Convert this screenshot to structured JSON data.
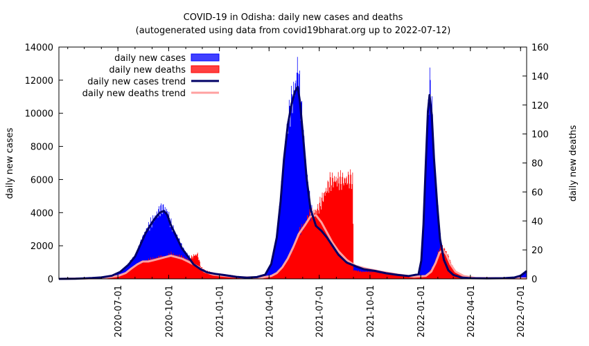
{
  "chart_data": {
    "type": "area",
    "title": "COVID-19 in Odisha: daily new cases and deaths",
    "subtitle": "(autogenerated using data from covid19bharat.org up to 2022-07-12)",
    "ylabel": "daily new cases",
    "y2label": "daily new deaths",
    "ylim": [
      0,
      14000
    ],
    "y2lim": [
      0,
      160
    ],
    "yticks": [
      0,
      2000,
      4000,
      6000,
      8000,
      10000,
      12000,
      14000
    ],
    "y2ticks": [
      0,
      20,
      40,
      60,
      80,
      100,
      120,
      140,
      160
    ],
    "x_start": "2020-03-16",
    "x_end": "2022-07-12",
    "x_ticks": [
      "2020-07-01",
      "2020-10-01",
      "2021-01-01",
      "2021-04-01",
      "2021-07-01",
      "2021-10-01",
      "2022-01-01",
      "2022-04-01",
      "2022-07-01"
    ],
    "legend_position": "top-left",
    "colors": {
      "cases_fill": "#0000ff",
      "cases_legend": "#4040ff",
      "deaths_fill": "#ff0000",
      "deaths_legend": "#ff4040",
      "cases_trend": "#000066",
      "deaths_trend": "#ffa0a0"
    },
    "series": [
      {
        "name": "daily new cases",
        "kind": "bars",
        "axis": "y",
        "points": [
          [
            "2020-03-16",
            0
          ],
          [
            "2020-04-15",
            10
          ],
          [
            "2020-05-15",
            60
          ],
          [
            "2020-06-01",
            100
          ],
          [
            "2020-06-20",
            200
          ],
          [
            "2020-07-05",
            450
          ],
          [
            "2020-07-20",
            900
          ],
          [
            "2020-08-01",
            1400
          ],
          [
            "2020-08-10",
            2100
          ],
          [
            "2020-08-20",
            2900
          ],
          [
            "2020-08-28",
            3300
          ],
          [
            "2020-09-05",
            3700
          ],
          [
            "2020-09-15",
            4150
          ],
          [
            "2020-09-22",
            4300
          ],
          [
            "2020-09-28",
            4000
          ],
          [
            "2020-10-05",
            3300
          ],
          [
            "2020-10-15",
            2600
          ],
          [
            "2020-10-25",
            1900
          ],
          [
            "2020-11-05",
            1400
          ],
          [
            "2020-11-15",
            900
          ],
          [
            "2020-11-28",
            600
          ],
          [
            "2020-12-10",
            400
          ],
          [
            "2020-12-25",
            320
          ],
          [
            "2021-01-10",
            250
          ],
          [
            "2021-02-01",
            130
          ],
          [
            "2021-02-20",
            80
          ],
          [
            "2021-03-10",
            120
          ],
          [
            "2021-03-25",
            280
          ],
          [
            "2021-04-05",
            1000
          ],
          [
            "2021-04-15",
            2700
          ],
          [
            "2021-04-22",
            5000
          ],
          [
            "2021-04-28",
            7500
          ],
          [
            "2021-05-05",
            9500
          ],
          [
            "2021-05-12",
            10800
          ],
          [
            "2021-05-18",
            11600
          ],
          [
            "2021-05-23",
            12800
          ],
          [
            "2021-05-27",
            11000
          ],
          [
            "2021-06-02",
            8700
          ],
          [
            "2021-06-08",
            6200
          ],
          [
            "2021-06-15",
            4300
          ],
          [
            "2021-06-25",
            3200
          ],
          [
            "2021-07-05",
            2800
          ],
          [
            "2021-07-15",
            2600
          ],
          [
            "2021-07-25",
            2100
          ],
          [
            "2021-08-05",
            1500
          ],
          [
            "2021-08-20",
            1000
          ],
          [
            "2021-09-05",
            800
          ],
          [
            "2021-09-20",
            600
          ],
          [
            "2021-10-10",
            500
          ],
          [
            "2021-10-30",
            350
          ],
          [
            "2021-11-20",
            250
          ],
          [
            "2021-12-10",
            180
          ],
          [
            "2021-12-28",
            300
          ],
          [
            "2022-01-02",
            1200
          ],
          [
            "2022-01-06",
            3500
          ],
          [
            "2022-01-10",
            7000
          ],
          [
            "2022-01-14",
            10300
          ],
          [
            "2022-01-17",
            11700
          ],
          [
            "2022-01-21",
            10200
          ],
          [
            "2022-01-25",
            7500
          ],
          [
            "2022-01-31",
            4500
          ],
          [
            "2022-02-05",
            2500
          ],
          [
            "2022-02-12",
            1200
          ],
          [
            "2022-02-20",
            550
          ],
          [
            "2022-03-01",
            250
          ],
          [
            "2022-03-15",
            90
          ],
          [
            "2022-04-01",
            40
          ],
          [
            "2022-05-01",
            30
          ],
          [
            "2022-06-01",
            40
          ],
          [
            "2022-06-20",
            90
          ],
          [
            "2022-07-01",
            200
          ],
          [
            "2022-07-12",
            500
          ]
        ]
      },
      {
        "name": "daily new deaths",
        "kind": "bars",
        "axis": "y2",
        "points": [
          [
            "2020-03-16",
            0
          ],
          [
            "2020-05-15",
            0.3
          ],
          [
            "2020-06-15",
            1
          ],
          [
            "2020-07-01",
            2
          ],
          [
            "2020-07-15",
            4
          ],
          [
            "2020-07-25",
            7
          ],
          [
            "2020-08-05",
            10
          ],
          [
            "2020-08-15",
            12
          ],
          [
            "2020-08-25",
            13
          ],
          [
            "2020-09-05",
            14
          ],
          [
            "2020-09-15",
            15
          ],
          [
            "2020-09-25",
            15
          ],
          [
            "2020-10-05",
            17
          ],
          [
            "2020-10-15",
            16
          ],
          [
            "2020-10-25",
            15
          ],
          [
            "2020-11-05",
            13
          ],
          [
            "2020-11-15",
            16
          ],
          [
            "2020-11-22",
            17
          ],
          [
            "2020-11-28",
            8
          ],
          [
            "2020-12-05",
            6
          ],
          [
            "2020-12-20",
            4
          ],
          [
            "2021-01-10",
            3
          ],
          [
            "2021-01-31",
            2
          ],
          [
            "2021-02-20",
            1
          ],
          [
            "2021-03-20",
            1
          ],
          [
            "2021-04-05",
            2
          ],
          [
            "2021-04-15",
            4
          ],
          [
            "2021-04-25",
            8
          ],
          [
            "2021-05-05",
            14
          ],
          [
            "2021-05-15",
            22
          ],
          [
            "2021-05-25",
            32
          ],
          [
            "2021-06-05",
            38
          ],
          [
            "2021-06-12",
            44
          ],
          [
            "2021-06-20",
            45
          ],
          [
            "2021-06-28",
            48
          ],
          [
            "2021-07-05",
            54
          ],
          [
            "2021-07-12",
            60
          ],
          [
            "2021-07-20",
            67
          ],
          [
            "2021-07-28",
            68
          ],
          [
            "2021-08-05",
            68
          ],
          [
            "2021-08-15",
            68
          ],
          [
            "2021-08-25",
            69
          ],
          [
            "2021-08-30",
            68
          ],
          [
            "2021-09-01",
            6
          ],
          [
            "2021-09-15",
            5
          ],
          [
            "2021-10-05",
            5
          ],
          [
            "2021-10-25",
            4
          ],
          [
            "2021-11-20",
            3
          ],
          [
            "2021-12-10",
            2
          ],
          [
            "2021-12-31",
            1
          ],
          [
            "2022-01-15",
            4
          ],
          [
            "2022-01-25",
            10
          ],
          [
            "2022-02-01",
            18
          ],
          [
            "2022-02-06",
            22
          ],
          [
            "2022-02-12",
            21
          ],
          [
            "2022-02-18",
            17
          ],
          [
            "2022-02-25",
            10
          ],
          [
            "2022-03-05",
            5
          ],
          [
            "2022-03-20",
            2
          ],
          [
            "2022-04-10",
            0.5
          ],
          [
            "2022-05-15",
            0.3
          ],
          [
            "2022-07-12",
            0.3
          ]
        ]
      },
      {
        "name": "daily new cases trend",
        "kind": "line",
        "axis": "y",
        "points": [
          [
            "2020-03-16",
            0
          ],
          [
            "2020-04-15",
            10
          ],
          [
            "2020-05-15",
            50
          ],
          [
            "2020-06-01",
            90
          ],
          [
            "2020-06-20",
            190
          ],
          [
            "2020-07-05",
            420
          ],
          [
            "2020-07-20",
            850
          ],
          [
            "2020-08-01",
            1350
          ],
          [
            "2020-08-10",
            2000
          ],
          [
            "2020-08-20",
            2750
          ],
          [
            "2020-08-28",
            3200
          ],
          [
            "2020-09-05",
            3600
          ],
          [
            "2020-09-15",
            4000
          ],
          [
            "2020-09-22",
            4100
          ],
          [
            "2020-09-28",
            3900
          ],
          [
            "2020-10-05",
            3250
          ],
          [
            "2020-10-15",
            2550
          ],
          [
            "2020-10-25",
            1850
          ],
          [
            "2020-11-05",
            1350
          ],
          [
            "2020-11-15",
            880
          ],
          [
            "2020-11-28",
            580
          ],
          [
            "2020-12-10",
            390
          ],
          [
            "2020-12-25",
            300
          ],
          [
            "2021-01-10",
            230
          ],
          [
            "2021-02-01",
            120
          ],
          [
            "2021-02-20",
            75
          ],
          [
            "2021-03-10",
            110
          ],
          [
            "2021-03-25",
            250
          ],
          [
            "2021-04-05",
            900
          ],
          [
            "2021-04-15",
            2500
          ],
          [
            "2021-04-22",
            4700
          ],
          [
            "2021-04-28",
            7200
          ],
          [
            "2021-05-05",
            9300
          ],
          [
            "2021-05-12",
            10600
          ],
          [
            "2021-05-18",
            11300
          ],
          [
            "2021-05-23",
            11600
          ],
          [
            "2021-05-27",
            10700
          ],
          [
            "2021-06-02",
            8500
          ],
          [
            "2021-06-08",
            6100
          ],
          [
            "2021-06-15",
            4250
          ],
          [
            "2021-06-25",
            3200
          ],
          [
            "2021-07-05",
            2900
          ],
          [
            "2021-07-15",
            2500
          ],
          [
            "2021-07-25",
            2000
          ],
          [
            "2021-08-05",
            1450
          ],
          [
            "2021-08-20",
            980
          ],
          [
            "2021-09-05",
            760
          ],
          [
            "2021-09-20",
            580
          ],
          [
            "2021-10-10",
            480
          ],
          [
            "2021-10-30",
            340
          ],
          [
            "2021-11-20",
            240
          ],
          [
            "2021-12-10",
            170
          ],
          [
            "2021-12-28",
            280
          ],
          [
            "2022-01-02",
            1100
          ],
          [
            "2022-01-06",
            3300
          ],
          [
            "2022-01-10",
            6800
          ],
          [
            "2022-01-14",
            10100
          ],
          [
            "2022-01-17",
            11100
          ],
          [
            "2022-01-21",
            9900
          ],
          [
            "2022-01-25",
            7300
          ],
          [
            "2022-01-31",
            4400
          ],
          [
            "2022-02-05",
            2400
          ],
          [
            "2022-02-12",
            1150
          ],
          [
            "2022-02-20",
            520
          ],
          [
            "2022-03-01",
            240
          ],
          [
            "2022-03-15",
            85
          ],
          [
            "2022-04-01",
            40
          ],
          [
            "2022-05-01",
            30
          ],
          [
            "2022-06-01",
            40
          ],
          [
            "2022-06-20",
            85
          ],
          [
            "2022-07-01",
            190
          ],
          [
            "2022-07-12",
            470
          ]
        ]
      },
      {
        "name": "daily new deaths trend",
        "kind": "line",
        "axis": "y2",
        "points": [
          [
            "2020-03-16",
            0
          ],
          [
            "2020-06-01",
            0.5
          ],
          [
            "2020-07-01",
            2
          ],
          [
            "2020-07-15",
            4
          ],
          [
            "2020-07-25",
            7
          ],
          [
            "2020-08-05",
            10
          ],
          [
            "2020-08-15",
            12
          ],
          [
            "2020-08-25",
            12
          ],
          [
            "2020-09-05",
            13
          ],
          [
            "2020-09-15",
            14
          ],
          [
            "2020-09-25",
            15
          ],
          [
            "2020-10-05",
            16
          ],
          [
            "2020-10-15",
            15
          ],
          [
            "2020-10-25",
            14
          ],
          [
            "2020-11-05",
            12
          ],
          [
            "2020-11-15",
            10
          ],
          [
            "2020-11-25",
            8
          ],
          [
            "2020-12-05",
            5
          ],
          [
            "2020-12-20",
            3
          ],
          [
            "2021-01-10",
            2
          ],
          [
            "2021-02-10",
            1
          ],
          [
            "2021-03-20",
            1
          ],
          [
            "2021-04-05",
            2
          ],
          [
            "2021-04-15",
            4
          ],
          [
            "2021-04-25",
            8
          ],
          [
            "2021-05-05",
            14
          ],
          [
            "2021-05-15",
            22
          ],
          [
            "2021-05-25",
            31
          ],
          [
            "2021-06-05",
            37
          ],
          [
            "2021-06-15",
            43
          ],
          [
            "2021-06-25",
            44
          ],
          [
            "2021-07-05",
            39
          ],
          [
            "2021-07-15",
            32
          ],
          [
            "2021-07-25",
            25
          ],
          [
            "2021-08-05",
            19
          ],
          [
            "2021-08-20",
            13
          ],
          [
            "2021-09-05",
            9
          ],
          [
            "2021-09-25",
            7
          ],
          [
            "2021-10-20",
            5
          ],
          [
            "2021-11-20",
            3
          ],
          [
            "2021-12-20",
            1.5
          ],
          [
            "2022-01-10",
            2
          ],
          [
            "2022-01-20",
            5
          ],
          [
            "2022-01-28",
            11
          ],
          [
            "2022-02-04",
            18
          ],
          [
            "2022-02-10",
            20
          ],
          [
            "2022-02-16",
            17
          ],
          [
            "2022-02-24",
            10
          ],
          [
            "2022-03-05",
            5
          ],
          [
            "2022-03-20",
            2
          ],
          [
            "2022-04-10",
            0.6
          ],
          [
            "2022-07-12",
            0.3
          ]
        ]
      }
    ]
  }
}
